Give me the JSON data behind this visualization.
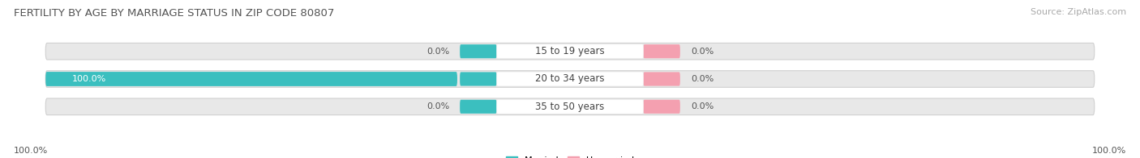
{
  "title": "FERTILITY BY AGE BY MARRIAGE STATUS IN ZIP CODE 80807",
  "source": "Source: ZipAtlas.com",
  "age_groups": [
    "15 to 19 years",
    "20 to 34 years",
    "35 to 50 years"
  ],
  "married_values": [
    0.0,
    100.0,
    0.0
  ],
  "unmarried_values": [
    0.0,
    0.0,
    0.0
  ],
  "married_color": "#3BBFBF",
  "unmarried_color": "#F4A0B0",
  "bar_bg_color": "#E8E8E8",
  "bar_bg_edge_color": "#D0D0D0",
  "center_label_bg": "#FFFFFF",
  "title_color": "#555555",
  "source_color": "#AAAAAA",
  "value_label_color": "#555555",
  "bar_value_color_inside": "#FFFFFF",
  "left_axis_label": "100.0%",
  "right_axis_label": "100.0%",
  "title_fontsize": 9.5,
  "source_fontsize": 8,
  "bar_label_fontsize": 8,
  "axis_label_fontsize": 8,
  "age_label_fontsize": 8.5,
  "background_color": "#FFFFFF",
  "figwidth": 14.06,
  "figheight": 1.96,
  "dpi": 100
}
